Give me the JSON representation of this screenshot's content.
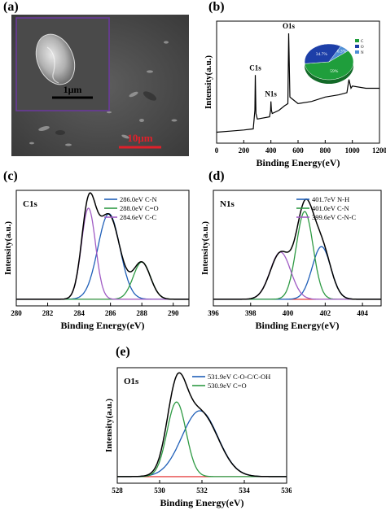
{
  "panel_letters": [
    "(a)",
    "(b)",
    "(c)",
    "(d)",
    "(e)"
  ],
  "sem": {
    "inset_scale": "1μm",
    "main_scale": "10μm",
    "colors": {
      "inset_border": "#6a3a9a",
      "inset_bar": "#000000",
      "main_bar": "#e0202a"
    }
  },
  "chart_data": [
    {
      "panel": "b",
      "type": "line",
      "xlabel": "Binding Energy(eV)",
      "ylabel": "Intensity(a.u.)",
      "xlim": [
        0,
        1200
      ],
      "xticks": [
        0,
        200,
        400,
        600,
        800,
        1000,
        1200
      ],
      "peak_labels": [
        {
          "text": "C1s",
          "x": 285
        },
        {
          "text": "N1s",
          "x": 400
        },
        {
          "text": "O1s",
          "x": 531
        }
      ],
      "series": [
        {
          "color": "#000000",
          "points": [
            [
              0,
              0.1
            ],
            [
              100,
              0.11
            ],
            [
              200,
              0.12
            ],
            [
              270,
              0.13
            ],
            [
              282,
              0.3
            ],
            [
              285,
              0.62
            ],
            [
              290,
              0.27
            ],
            [
              300,
              0.22
            ],
            [
              390,
              0.24
            ],
            [
              398,
              0.3
            ],
            [
              400,
              0.38
            ],
            [
              404,
              0.3
            ],
            [
              410,
              0.27
            ],
            [
              460,
              0.3
            ],
            [
              500,
              0.34
            ],
            [
              525,
              0.36
            ],
            [
              531,
              1.0
            ],
            [
              540,
              0.42
            ],
            [
              560,
              0.4
            ],
            [
              600,
              0.36
            ],
            [
              700,
              0.38
            ],
            [
              800,
              0.42
            ],
            [
              900,
              0.44
            ],
            [
              960,
              0.46
            ],
            [
              975,
              0.58
            ],
            [
              990,
              0.5
            ],
            [
              1000,
              0.52
            ],
            [
              1100,
              0.5
            ],
            [
              1200,
              0.5
            ]
          ]
        }
      ],
      "inset_pie": {
        "labels": [
          "C",
          "O",
          "N"
        ],
        "values": [
          59,
          34.7,
          6.3
        ],
        "colors": [
          "#1f9e3c",
          "#1d3fa8",
          "#4f8fd6"
        ],
        "slice_labels": [
          "59%",
          "34.7%",
          "6.3%"
        ]
      }
    },
    {
      "panel": "c",
      "type": "line",
      "title": "C1s",
      "xlabel": "Binding Energy(eV)",
      "ylabel": "Intensity(a.u.)",
      "xlim": [
        280,
        291
      ],
      "xticks": [
        280,
        282,
        284,
        286,
        288,
        290
      ],
      "legend": [
        "286.0eV C-N",
        "288.0eV C=O",
        "284.6eV C-C"
      ],
      "legend_position": "top-right",
      "components": [
        {
          "name": "286.0eV C-N",
          "center": 285.9,
          "height": 0.78,
          "width": 0.7,
          "color": "#1f5fb8"
        },
        {
          "name": "288.0eV C=O",
          "center": 288.0,
          "height": 0.34,
          "width": 0.55,
          "color": "#2e9a44"
        },
        {
          "name": "284.6eV C-C",
          "center": 284.6,
          "height": 0.83,
          "width": 0.45,
          "color": "#a05cc4"
        }
      ],
      "baseline_color": "#e02020",
      "envelope_color": "#000000"
    },
    {
      "panel": "d",
      "type": "line",
      "title": "N1s",
      "xlabel": "Binding Energy(eV)",
      "ylabel": "Intensity(a.u.)",
      "xlim": [
        396,
        405
      ],
      "xticks": [
        396,
        398,
        400,
        402,
        404
      ],
      "legend": [
        "401.7eV N-H",
        "401.0eV C-N",
        "399.6eV C-N-C"
      ],
      "legend_position": "top-right",
      "components": [
        {
          "name": "401.7eV N-H",
          "center": 401.8,
          "height": 0.48,
          "width": 0.5,
          "color": "#1f5fb8"
        },
        {
          "name": "401.0eV C-N",
          "center": 400.9,
          "height": 0.8,
          "width": 0.45,
          "color": "#2e9a44"
        },
        {
          "name": "399.6eV C-N-C",
          "center": 399.6,
          "height": 0.43,
          "width": 0.55,
          "color": "#a05cc4"
        }
      ],
      "baseline_color": "#e02020",
      "envelope_color": "#000000"
    },
    {
      "panel": "e",
      "type": "line",
      "title": "O1s",
      "xlabel": "Binding Energy(eV)",
      "ylabel": "Intensity(a.u.)",
      "xlim": [
        528,
        536
      ],
      "xticks": [
        528,
        530,
        532,
        534,
        536
      ],
      "legend": [
        "531.9eV C-O-C/C-OH",
        "530.9eV C=O"
      ],
      "legend_position": "top-right",
      "components": [
        {
          "name": "531.9eV C-O-C/C-OH",
          "center": 531.9,
          "height": 0.6,
          "width": 0.85,
          "color": "#1f5fb8"
        },
        {
          "name": "530.9eV C=O",
          "center": 530.8,
          "height": 0.68,
          "width": 0.45,
          "color": "#2e9a44"
        }
      ],
      "baseline_color": "#e02020",
      "envelope_color": "#000000"
    }
  ]
}
